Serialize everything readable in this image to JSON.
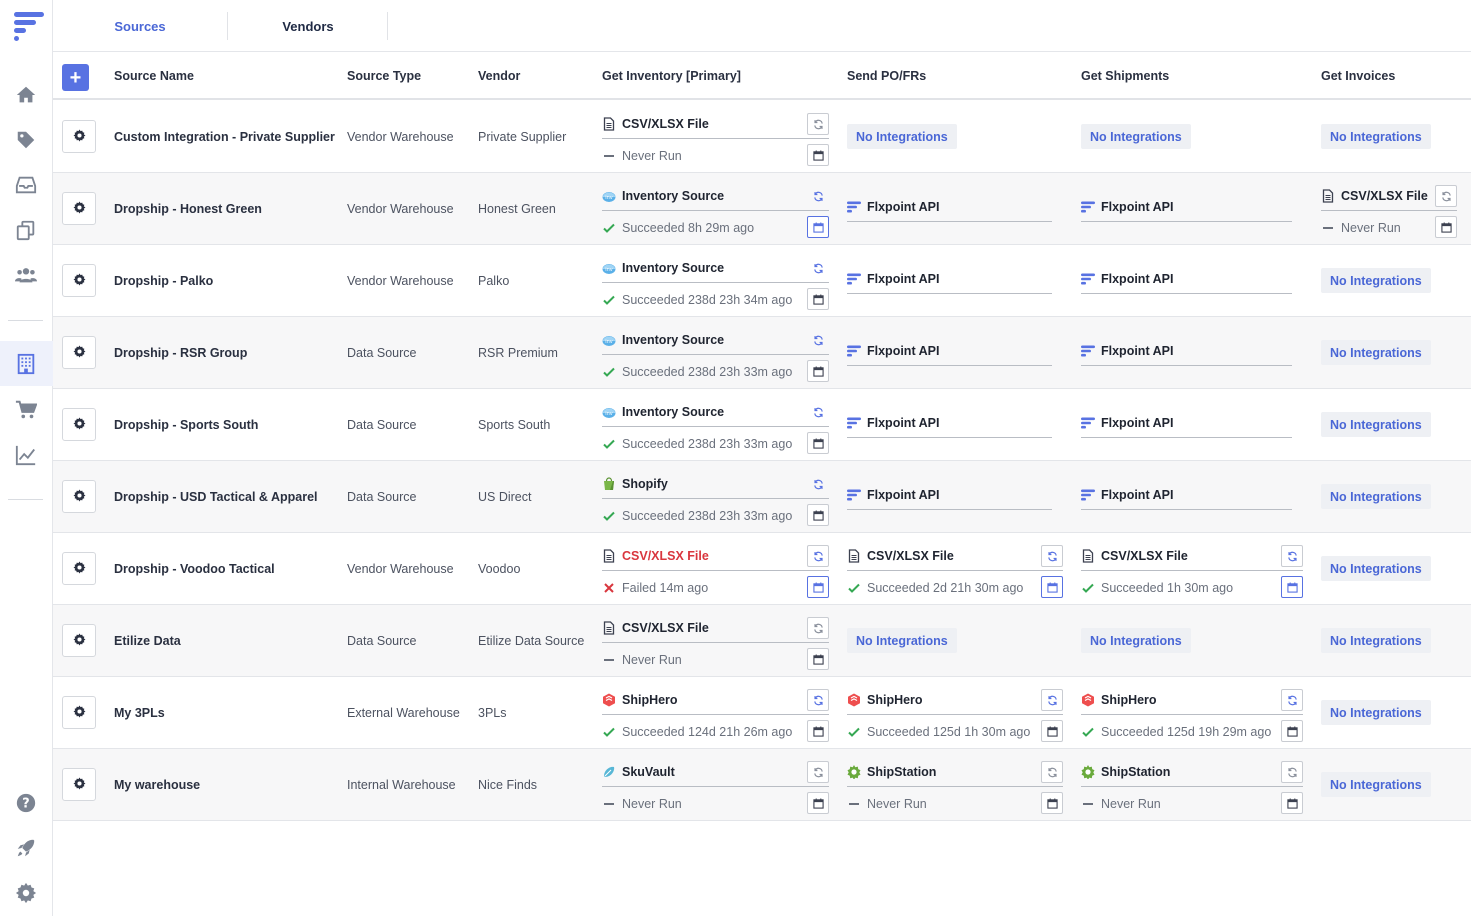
{
  "colors": {
    "accent": "#4a67d6",
    "success": "#35a853",
    "failed": "#d9363e",
    "button": "#5872e2"
  },
  "tabs": [
    {
      "label": "Sources",
      "active": true
    },
    {
      "label": "Vendors",
      "active": false
    }
  ],
  "sidebar": {
    "items": [
      {
        "icon": "home-icon"
      },
      {
        "icon": "tag-icon"
      },
      {
        "icon": "inbox-icon"
      },
      {
        "icon": "copy-icon"
      },
      {
        "icon": "users-icon"
      },
      {
        "icon": "building-icon",
        "active": true
      },
      {
        "icon": "cart-icon"
      },
      {
        "icon": "chart-line-icon"
      },
      {
        "icon": "help-icon"
      },
      {
        "icon": "rocket-icon"
      },
      {
        "icon": "gear-icon"
      }
    ]
  },
  "table": {
    "add_label": "+",
    "headers": {
      "name": "Source Name",
      "type": "Source Type",
      "vendor": "Vendor",
      "inventory": "Get Inventory [Primary]",
      "po": "Send PO/FRs",
      "shipments": "Get Shipments",
      "invoices": "Get Invoices"
    },
    "no_integrations": "No Integrations",
    "rows": [
      {
        "name": "Custom Integration - Private Supplier",
        "type": "Vendor Warehouse",
        "vendor": "Private Supplier",
        "inventory": {
          "kind": "file",
          "label": "CSV/XLSX File",
          "status": "never",
          "status_text": "Never Run",
          "highlight": false
        },
        "po": {
          "kind": "none"
        },
        "shipments": {
          "kind": "none"
        },
        "invoices": {
          "kind": "none"
        }
      },
      {
        "name": "Dropship - Honest Green",
        "type": "Vendor Warehouse",
        "vendor": "Honest Green",
        "inventory": {
          "kind": "invsrc",
          "label": "Inventory Source",
          "status": "ok",
          "status_text": "Succeeded 8h 29m ago",
          "highlight": true
        },
        "po": {
          "kind": "api",
          "label": "Flxpoint API"
        },
        "shipments": {
          "kind": "api",
          "label": "Flxpoint API"
        },
        "invoices": {
          "kind": "file",
          "label": "CSV/XLSX File",
          "status": "never",
          "status_text": "Never Run",
          "highlight": false
        }
      },
      {
        "name": "Dropship - Palko",
        "type": "Vendor Warehouse",
        "vendor": "Palko",
        "inventory": {
          "kind": "invsrc",
          "label": "Inventory Source",
          "status": "ok",
          "status_text": "Succeeded 238d 23h 34m ago",
          "highlight": false
        },
        "po": {
          "kind": "api",
          "label": "Flxpoint API"
        },
        "shipments": {
          "kind": "api",
          "label": "Flxpoint API"
        },
        "invoices": {
          "kind": "none"
        }
      },
      {
        "name": "Dropship - RSR Group",
        "type": "Data Source",
        "vendor": "RSR Premium",
        "inventory": {
          "kind": "invsrc",
          "label": "Inventory Source",
          "status": "ok",
          "status_text": "Succeeded 238d 23h 33m ago",
          "highlight": false
        },
        "po": {
          "kind": "api",
          "label": "Flxpoint API"
        },
        "shipments": {
          "kind": "api",
          "label": "Flxpoint API"
        },
        "invoices": {
          "kind": "none"
        }
      },
      {
        "name": "Dropship - Sports South",
        "type": "Data Source",
        "vendor": "Sports South",
        "inventory": {
          "kind": "invsrc",
          "label": "Inventory Source",
          "status": "ok",
          "status_text": "Succeeded 238d 23h 33m ago",
          "highlight": false
        },
        "po": {
          "kind": "api",
          "label": "Flxpoint API"
        },
        "shipments": {
          "kind": "api",
          "label": "Flxpoint API"
        },
        "invoices": {
          "kind": "none"
        }
      },
      {
        "name": "Dropship - USD Tactical & Apparel",
        "type": "Data Source",
        "vendor": "US Direct",
        "inventory": {
          "kind": "shopify",
          "label": "Shopify",
          "status": "ok",
          "status_text": "Succeeded 238d 23h 33m ago",
          "highlight": false
        },
        "po": {
          "kind": "api",
          "label": "Flxpoint API"
        },
        "shipments": {
          "kind": "api",
          "label": "Flxpoint API"
        },
        "invoices": {
          "kind": "none"
        }
      },
      {
        "name": "Dropship - Voodoo Tactical",
        "type": "Vendor Warehouse",
        "vendor": "Voodoo",
        "inventory": {
          "kind": "file",
          "label": "CSV/XLSX File",
          "status": "failed",
          "status_text": "Failed 14m ago",
          "highlight": true
        },
        "po": {
          "kind": "file",
          "label": "CSV/XLSX File",
          "status": "ok",
          "status_text": "Succeeded 2d 21h 30m ago",
          "highlight": true
        },
        "shipments": {
          "kind": "file",
          "label": "CSV/XLSX File",
          "status": "ok",
          "status_text": "Succeeded 1h 30m ago",
          "highlight": true
        },
        "invoices": {
          "kind": "none"
        }
      },
      {
        "name": "Etilize Data",
        "type": "Data Source",
        "vendor": "Etilize Data Source",
        "inventory": {
          "kind": "file",
          "label": "CSV/XLSX File",
          "status": "never",
          "status_text": "Never Run",
          "highlight": false
        },
        "po": {
          "kind": "none"
        },
        "shipments": {
          "kind": "none"
        },
        "invoices": {
          "kind": "none"
        }
      },
      {
        "name": "My 3PLs",
        "type": "External Warehouse",
        "vendor": "3PLs",
        "inventory": {
          "kind": "shiphero",
          "label": "ShipHero",
          "status": "ok",
          "status_text": "Succeeded 124d 21h 26m ago",
          "highlight": false
        },
        "po": {
          "kind": "shiphero",
          "label": "ShipHero",
          "status": "ok",
          "status_text": "Succeeded 125d 1h 30m ago",
          "highlight": false
        },
        "shipments": {
          "kind": "shiphero",
          "label": "ShipHero",
          "status": "ok",
          "status_text": "Succeeded 125d 19h 29m ago",
          "highlight": false
        },
        "invoices": {
          "kind": "none"
        }
      },
      {
        "name": "My warehouse",
        "type": "Internal Warehouse",
        "vendor": "Nice Finds",
        "inventory": {
          "kind": "skuvault",
          "label": "SkuVault",
          "status": "never",
          "status_text": "Never Run",
          "highlight": false
        },
        "po": {
          "kind": "shipstation",
          "label": "ShipStation",
          "status": "never",
          "status_text": "Never Run",
          "highlight": false
        },
        "shipments": {
          "kind": "shipstation",
          "label": "ShipStation",
          "status": "never",
          "status_text": "Never Run",
          "highlight": false
        },
        "invoices": {
          "kind": "none"
        }
      }
    ]
  }
}
